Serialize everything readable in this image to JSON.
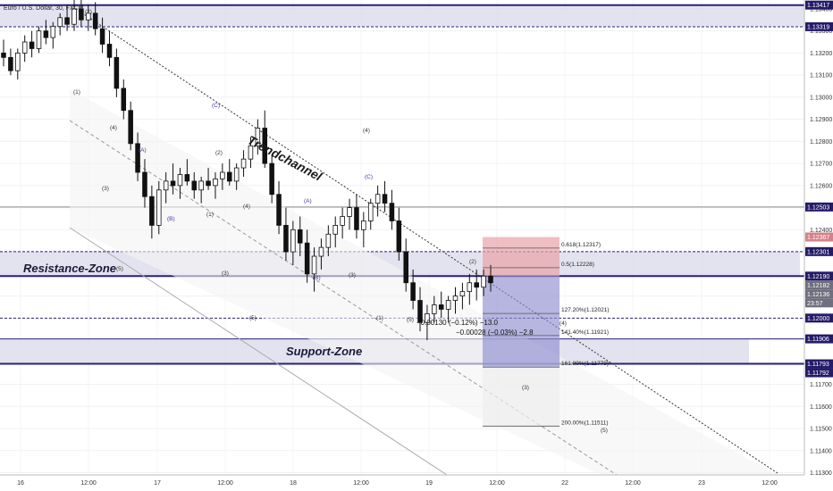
{
  "chart_data": {
    "type": "candlestick",
    "title": "Euro / U.S. Dollar, 30, FXCM",
    "y_axis": {
      "ylim": [
        1.1129,
        1.1344
      ],
      "ticks": [
        "1.11300",
        "1.11400",
        "1.11500",
        "1.11600",
        "1.11700",
        "1.11800",
        "1.11900",
        "1.12000",
        "1.12100",
        "1.12200",
        "1.12300",
        "1.12400",
        "1.12500",
        "1.12600",
        "1.12700",
        "1.12800",
        "1.12900",
        "1.13000",
        "1.13100",
        "1.13200",
        "1.13300",
        "1.13400"
      ]
    },
    "x_axis": {
      "ticks": [
        "16",
        "12:00",
        "17",
        "12:00",
        "18",
        "12:00",
        "19",
        "12:00",
        "22",
        "12:00",
        "23",
        "12:00"
      ]
    },
    "price_tags": [
      {
        "value": 1.13417,
        "label": "1.13417",
        "style": "dark"
      },
      {
        "value": 1.13319,
        "label": "1.13319",
        "style": "dark"
      },
      {
        "value": 1.12503,
        "label": "1.12503",
        "style": "dark"
      },
      {
        "value": 1.12367,
        "label": "1.12367",
        "style": "red"
      },
      {
        "value": 1.12301,
        "label": "1.12301",
        "style": "dark"
      },
      {
        "value": 1.1219,
        "label": "1.12190",
        "style": "dark"
      },
      {
        "value": 1.12182,
        "label": "1.12182",
        "style": "gray"
      },
      {
        "value": 1.12136,
        "label": "1.12136",
        "style": "gray"
      },
      {
        "value": 1.12091,
        "label": "23:57",
        "style": "gray"
      },
      {
        "value": 1.12,
        "label": "1.12000",
        "style": "dark"
      },
      {
        "value": 1.11906,
        "label": "1.11906",
        "style": "dark"
      },
      {
        "value": 1.11793,
        "label": "1.11793",
        "style": "dark"
      },
      {
        "value": 1.11792,
        "label": "1.11792",
        "style": "dark"
      }
    ],
    "zones": [
      {
        "name": "Resistance-Zone",
        "top": 1.12301,
        "bottom": 1.1219
      },
      {
        "name": "Support-Zone",
        "top": 1.11906,
        "bottom": 1.11793
      },
      {
        "name": "",
        "top": 1.13417,
        "bottom": 1.13319
      }
    ],
    "horizontal_lines": [
      1.13417,
      1.13319,
      1.12503,
      1.12301,
      1.1219,
      1.12,
      1.11906,
      1.11793
    ],
    "trendchannel_label": "Trendchannel",
    "fib_levels": [
      {
        "label": "0.618(1.12317)",
        "value": 1.12317
      },
      {
        "label": "0.5(1.12228)",
        "value": 1.12228
      },
      {
        "label": "127.20%(1.12021)",
        "value": 1.12021
      },
      {
        "label": "141.40%(1.11921)",
        "value": 1.11921
      },
      {
        "label": "161.80%(1.11778)",
        "value": 1.11778
      },
      {
        "label": "200.00%(1.11511)",
        "value": 1.11511
      }
    ],
    "position": {
      "stop": 1.12367,
      "entry": 1.1219,
      "target": 1.11778
    },
    "measurements": [
      "−0.00130 (−0.12%) −13.0",
      "−0.00028 (−0.03%) −2.8"
    ],
    "wave_labels": [
      "(1)",
      "(2)",
      "(3)",
      "(4)",
      "(5)",
      "(A)",
      "(B)",
      "(C)",
      "(A)",
      "(B)",
      "(C)",
      "(1)",
      "(2)",
      "(3)",
      "(4)",
      "(5)",
      "(1)",
      "(2)",
      "(3)",
      "(4)",
      "(5)",
      "(4)",
      "(3)",
      "(5)"
    ],
    "candles": [
      [
        1.132,
        1.1326,
        1.1314,
        1.1318
      ],
      [
        1.1318,
        1.1322,
        1.131,
        1.1312
      ],
      [
        1.1312,
        1.1322,
        1.1308,
        1.132
      ],
      [
        1.132,
        1.1328,
        1.1316,
        1.1325
      ],
      [
        1.1325,
        1.133,
        1.1318,
        1.1322
      ],
      [
        1.1322,
        1.1332,
        1.132,
        1.133
      ],
      [
        1.133,
        1.1335,
        1.1324,
        1.1327
      ],
      [
        1.1327,
        1.1334,
        1.1322,
        1.1332
      ],
      [
        1.1332,
        1.1338,
        1.1328,
        1.1336
      ],
      [
        1.1336,
        1.1342,
        1.133,
        1.1333
      ],
      [
        1.1333,
        1.1344,
        1.133,
        1.134
      ],
      [
        1.134,
        1.1344,
        1.1332,
        1.1335
      ],
      [
        1.1335,
        1.1342,
        1.133,
        1.1338
      ],
      [
        1.1338,
        1.1343,
        1.1328,
        1.1331
      ],
      [
        1.1331,
        1.1336,
        1.132,
        1.1324
      ],
      [
        1.1324,
        1.133,
        1.1314,
        1.1318
      ],
      [
        1.1318,
        1.1322,
        1.13,
        1.1304
      ],
      [
        1.1304,
        1.1308,
        1.129,
        1.1294
      ],
      [
        1.1294,
        1.1298,
        1.1276,
        1.1279
      ],
      [
        1.1279,
        1.1284,
        1.1262,
        1.1266
      ],
      [
        1.1266,
        1.1272,
        1.125,
        1.1255
      ],
      [
        1.1255,
        1.126,
        1.1236,
        1.1242
      ],
      [
        1.1242,
        1.1262,
        1.1238,
        1.1258
      ],
      [
        1.1258,
        1.1266,
        1.1252,
        1.1262
      ],
      [
        1.1262,
        1.127,
        1.1256,
        1.126
      ],
      [
        1.126,
        1.1268,
        1.1254,
        1.1265
      ],
      [
        1.1265,
        1.1272,
        1.126,
        1.1262
      ],
      [
        1.1262,
        1.1266,
        1.1254,
        1.1258
      ],
      [
        1.1258,
        1.1264,
        1.1252,
        1.1262
      ],
      [
        1.1262,
        1.1268,
        1.1258,
        1.126
      ],
      [
        1.126,
        1.1266,
        1.1254,
        1.1263
      ],
      [
        1.1263,
        1.127,
        1.1258,
        1.1266
      ],
      [
        1.1266,
        1.1272,
        1.126,
        1.1262
      ],
      [
        1.1262,
        1.127,
        1.1258,
        1.1268
      ],
      [
        1.1268,
        1.1276,
        1.1264,
        1.1272
      ],
      [
        1.1272,
        1.1282,
        1.1268,
        1.1278
      ],
      [
        1.1278,
        1.129,
        1.1274,
        1.1286
      ],
      [
        1.1286,
        1.1294,
        1.1268,
        1.127
      ],
      [
        1.127,
        1.1274,
        1.1252,
        1.1256
      ],
      [
        1.1256,
        1.1262,
        1.1238,
        1.1242
      ],
      [
        1.1242,
        1.125,
        1.1226,
        1.123
      ],
      [
        1.123,
        1.1244,
        1.1224,
        1.124
      ],
      [
        1.124,
        1.1246,
        1.1228,
        1.1234
      ],
      [
        1.1234,
        1.124,
        1.1216,
        1.122
      ],
      [
        1.122,
        1.1232,
        1.1212,
        1.1228
      ],
      [
        1.1228,
        1.1236,
        1.1222,
        1.1232
      ],
      [
        1.1232,
        1.1242,
        1.1228,
        1.1238
      ],
      [
        1.1238,
        1.1246,
        1.1232,
        1.1242
      ],
      [
        1.1242,
        1.125,
        1.1236,
        1.1246
      ],
      [
        1.1246,
        1.1254,
        1.124,
        1.125
      ],
      [
        1.125,
        1.1256,
        1.1236,
        1.124
      ],
      [
        1.124,
        1.1248,
        1.1232,
        1.1244
      ],
      [
        1.1244,
        1.1254,
        1.124,
        1.1252
      ],
      [
        1.1252,
        1.126,
        1.1246,
        1.1256
      ],
      [
        1.1256,
        1.1262,
        1.1248,
        1.1252
      ],
      [
        1.1252,
        1.1258,
        1.124,
        1.1244
      ],
      [
        1.1244,
        1.125,
        1.1226,
        1.123
      ],
      [
        1.123,
        1.1236,
        1.1212,
        1.1216
      ],
      [
        1.1216,
        1.1222,
        1.1204,
        1.1208
      ],
      [
        1.1208,
        1.1214,
        1.1194,
        1.1198
      ],
      [
        1.1198,
        1.1206,
        1.119,
        1.1202
      ],
      [
        1.1202,
        1.121,
        1.1198,
        1.1206
      ],
      [
        1.1206,
        1.1212,
        1.12,
        1.1204
      ],
      [
        1.1204,
        1.121,
        1.1198,
        1.1208
      ],
      [
        1.1208,
        1.1214,
        1.1202,
        1.121
      ],
      [
        1.121,
        1.1216,
        1.1204,
        1.1212
      ],
      [
        1.1212,
        1.122,
        1.1206,
        1.1216
      ],
      [
        1.1216,
        1.1222,
        1.1208,
        1.1214
      ],
      [
        1.1214,
        1.1222,
        1.121,
        1.1219
      ],
      [
        1.1219,
        1.1224,
        1.1212,
        1.1216
      ]
    ]
  }
}
